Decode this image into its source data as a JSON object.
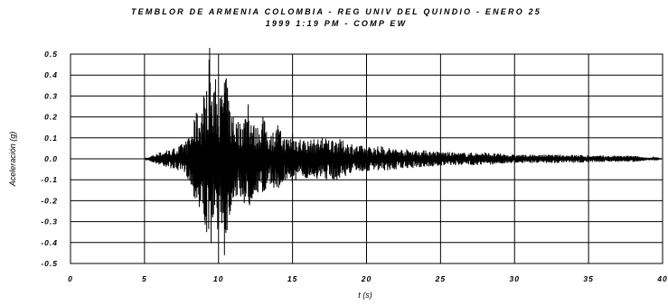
{
  "chart_data": {
    "type": "line",
    "title_lines": [
      "TEMBLOR DE ARMENIA COLOMBIA - REG UNIV DEL QUINDIO - ENERO 25",
      "1999 1:19 PM - COMP EW"
    ],
    "xlabel": "t (s)",
    "ylabel": "Aceleración (g)",
    "xlim": [
      0,
      40
    ],
    "ylim": [
      -0.5,
      0.5
    ],
    "x_ticks": [
      "0",
      "5",
      "10",
      "15",
      "20",
      "25",
      "30",
      "35",
      "40"
    ],
    "y_ticks": [
      "0.5",
      "0.4",
      "0.3",
      "0.2",
      "0.1",
      "0.0",
      "-0.1",
      "-0.2",
      "-0.3",
      "-0.4",
      "-0.5"
    ],
    "grid": true,
    "series": [
      {
        "x": [
          5.0,
          5.5,
          6.0,
          6.5,
          7.0,
          7.5,
          8.0,
          8.5,
          8.7,
          9.0,
          9.2,
          9.4,
          9.6,
          9.8,
          10.0,
          10.2,
          10.4,
          10.6,
          10.8,
          11.0,
          11.5,
          12.0,
          12.5,
          13.0,
          13.5,
          14.0,
          14.5,
          15.0,
          16.0,
          17.0,
          18.0,
          19.0,
          20.0,
          21.0,
          22.0,
          24.0,
          26.0,
          28.0,
          30.0,
          32.0,
          34.0,
          36.0,
          38.0,
          40.0
        ],
        "y": [
          0.0,
          0.015,
          0.03,
          0.04,
          0.05,
          0.07,
          0.1,
          0.22,
          -0.23,
          0.3,
          -0.35,
          0.53,
          -0.28,
          0.38,
          -0.32,
          0.3,
          -0.46,
          0.34,
          -0.25,
          0.2,
          -0.18,
          0.26,
          -0.15,
          0.2,
          -0.12,
          0.16,
          -0.1,
          0.12,
          -0.09,
          0.1,
          -0.1,
          0.07,
          -0.06,
          0.06,
          -0.05,
          0.04,
          -0.03,
          0.03,
          -0.02,
          0.02,
          -0.02,
          0.015,
          -0.015,
          0.0
        ]
      }
    ]
  }
}
